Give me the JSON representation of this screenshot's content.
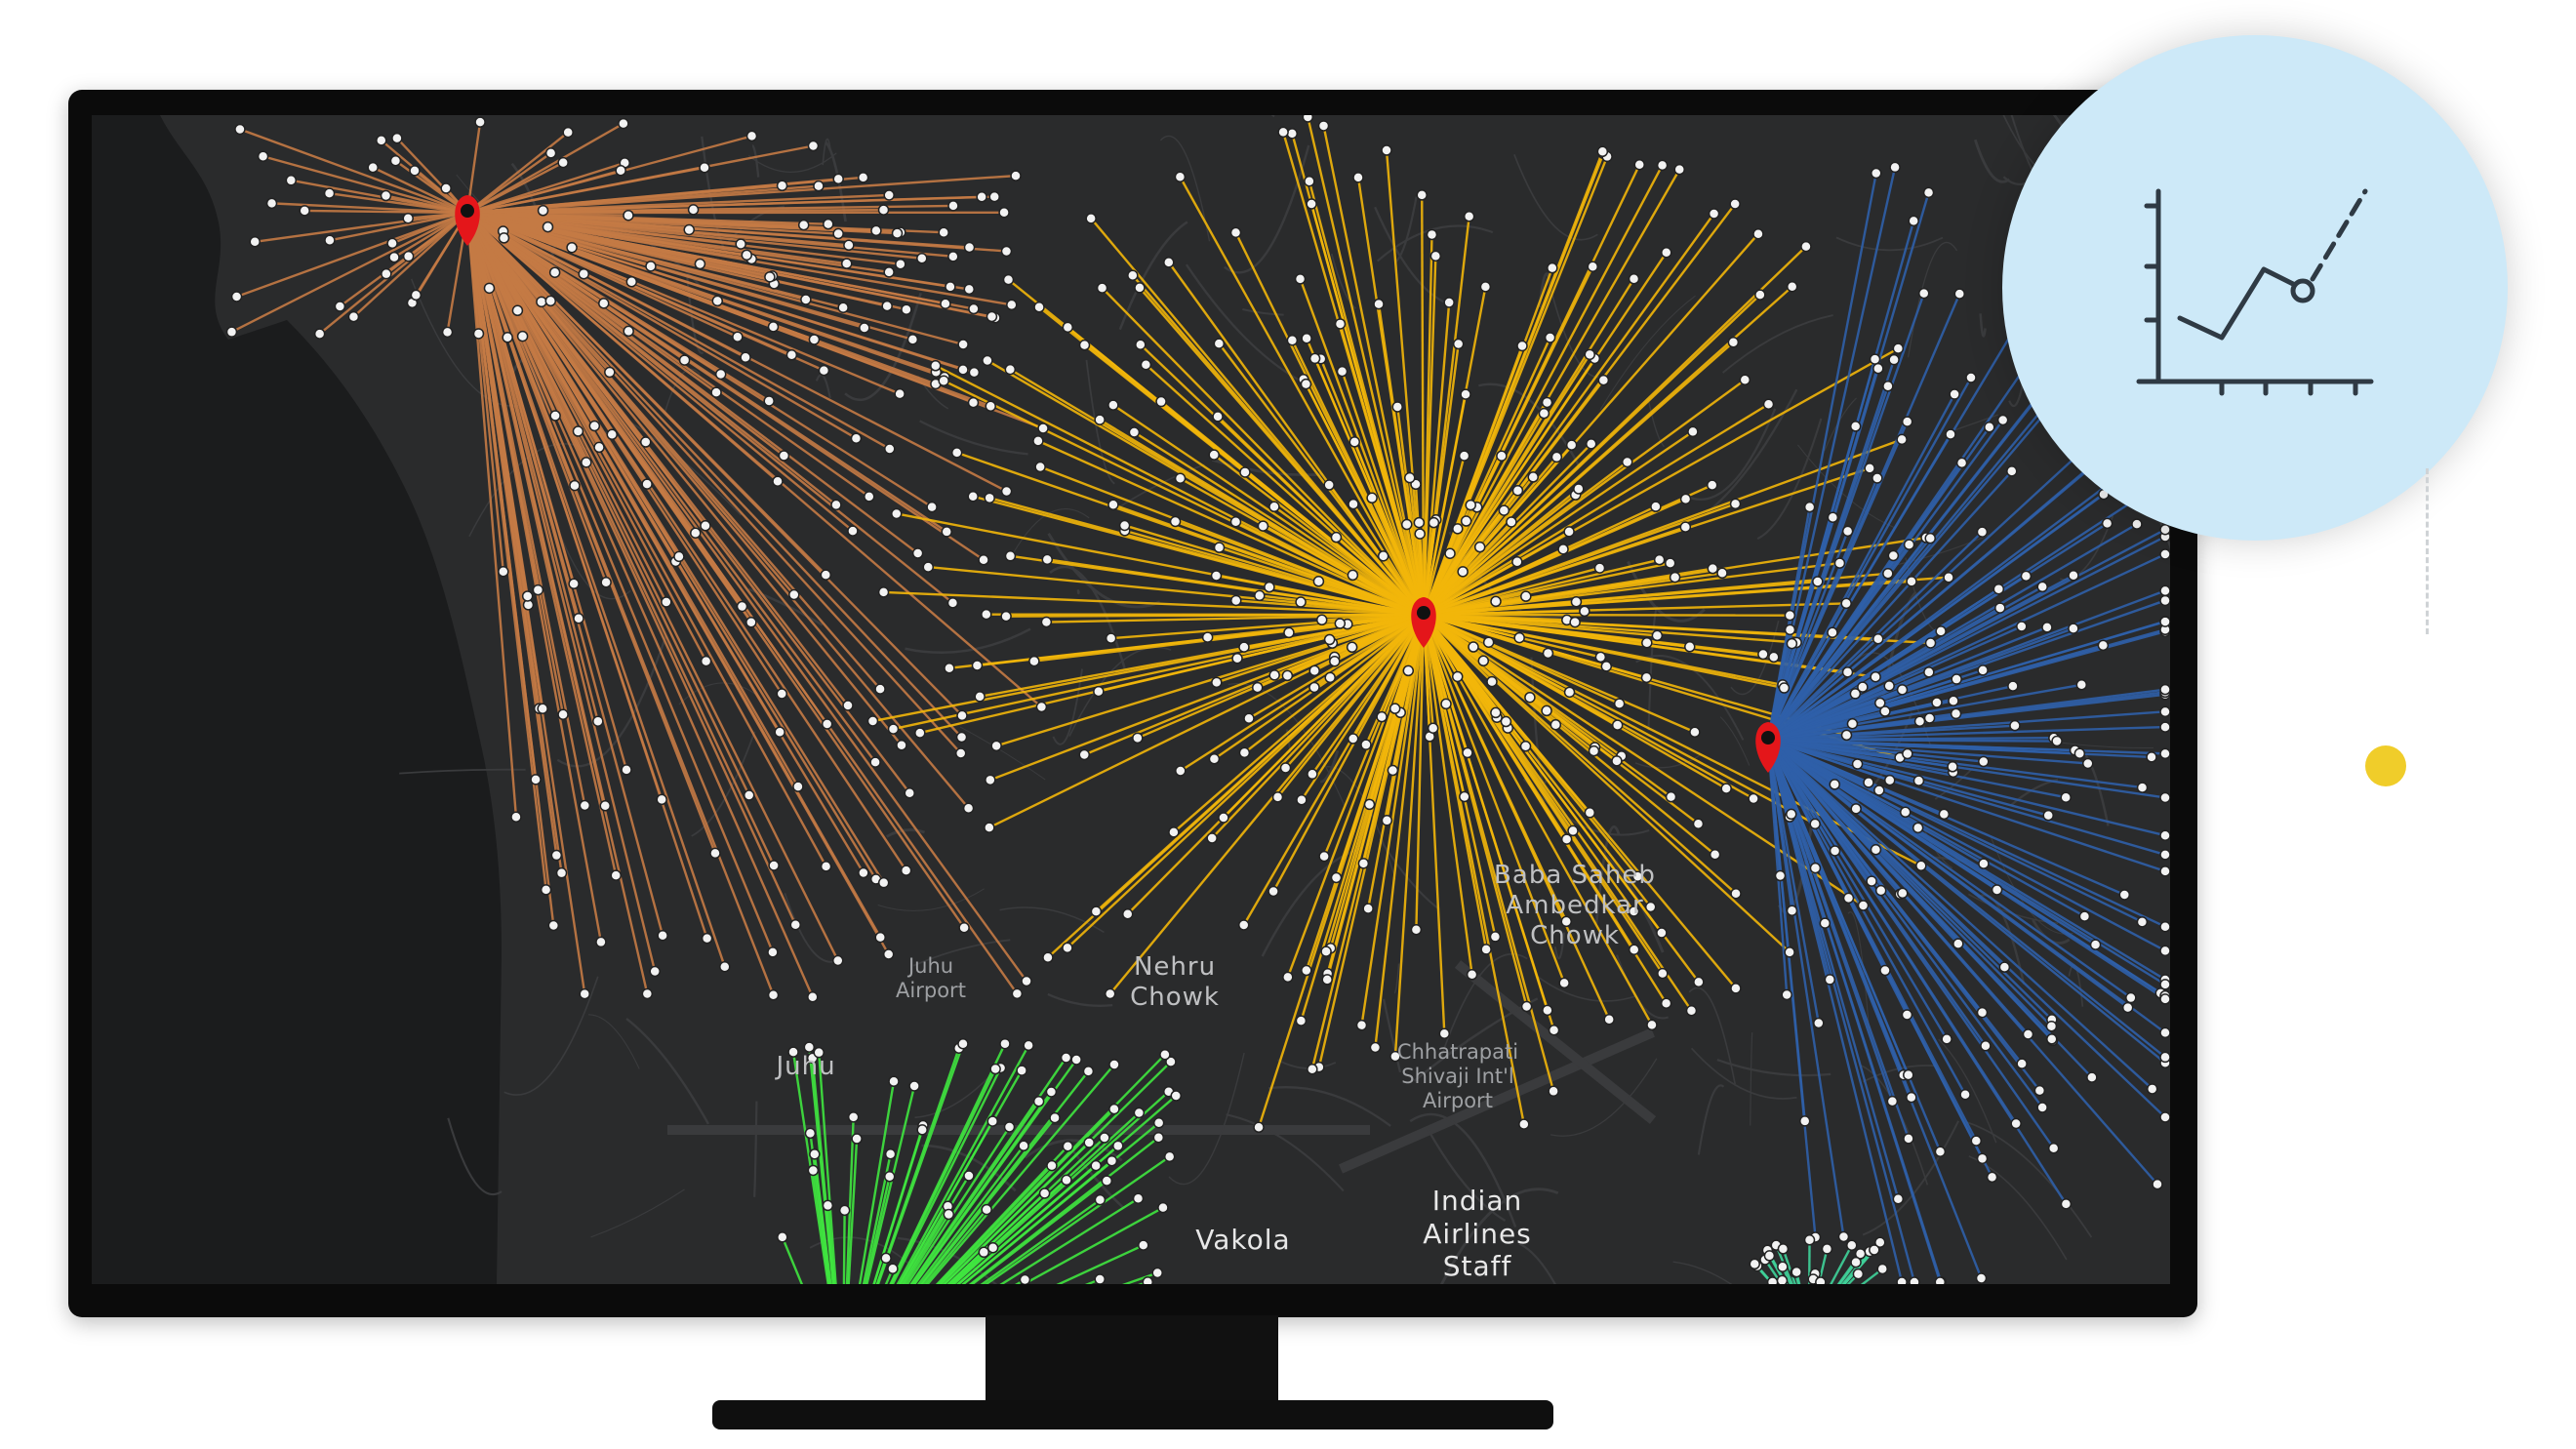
{
  "map": {
    "labels": {
      "baba_saheb": "Baba Saheb\nAmbedkar\nChowk",
      "juhu_airport": "Juhu\nAirport",
      "nehru_chowk": "Nehru\nChowk",
      "chhatrapati": "Chhatrapati\nShivaji Int'l\nAirport",
      "juhu": "Juhu",
      "vakola": "Vakola",
      "indian_airlines": "Indian\nAirlines\nStaff"
    },
    "hubs": [
      {
        "name": "orange-hub",
        "color": "#c47a45"
      },
      {
        "name": "yellow-hub",
        "color": "#f2b60a"
      },
      {
        "name": "blue-hub",
        "color": "#2f5fa8"
      },
      {
        "name": "green-hub",
        "color": "#3fe63f"
      },
      {
        "name": "teal-hub",
        "color": "#3fd39a"
      }
    ],
    "colors": {
      "land": "#2a2b2c",
      "water": "#1b1c1d",
      "roads": "#3a3b3d",
      "pin": "#e4161a"
    }
  },
  "badge": {
    "icon": "line-chart-icon",
    "background": "#cde9f8"
  },
  "decor": {
    "accent_dot": "#f0cd2a"
  }
}
